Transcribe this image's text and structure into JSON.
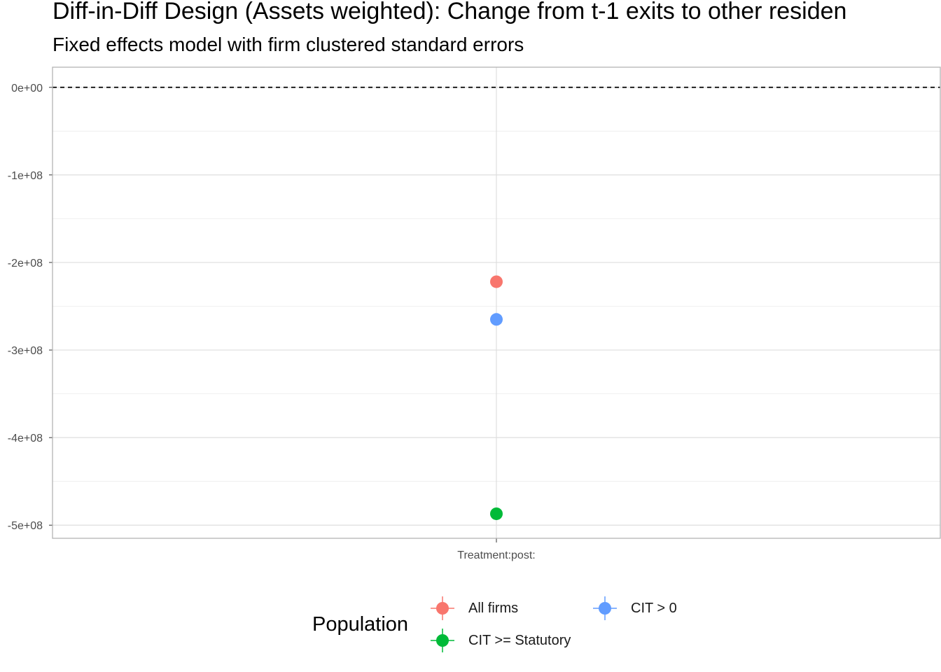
{
  "chart_data": {
    "type": "scatter",
    "title": "Diff-in-Diff Design (Assets weighted): Change from t-1 exits to other residen",
    "subtitle": "Fixed effects model with firm clustered standard errors",
    "categories": [
      "Treatment:post:"
    ],
    "ylim": [
      -515000000,
      23000000
    ],
    "y_ticks": [
      0,
      -100000000,
      -200000000,
      -300000000,
      -400000000,
      -500000000
    ],
    "y_tick_labels": [
      "0e+00",
      "-1e+08",
      "-2e+08",
      "-3e+08",
      "-4e+08",
      "-5e+08"
    ],
    "reference_line": 0,
    "grid": true,
    "legend": {
      "title": "Population",
      "placement": "bottom"
    },
    "series": [
      {
        "name": "All firms",
        "color": "#F8766D",
        "values": [
          -222000000
        ]
      },
      {
        "name": "CIT > 0",
        "color": "#619CFF",
        "values": [
          -265000000
        ]
      },
      {
        "name": "CIT >= Statutory",
        "color": "#00BA38",
        "values": [
          -487000000
        ]
      }
    ]
  }
}
